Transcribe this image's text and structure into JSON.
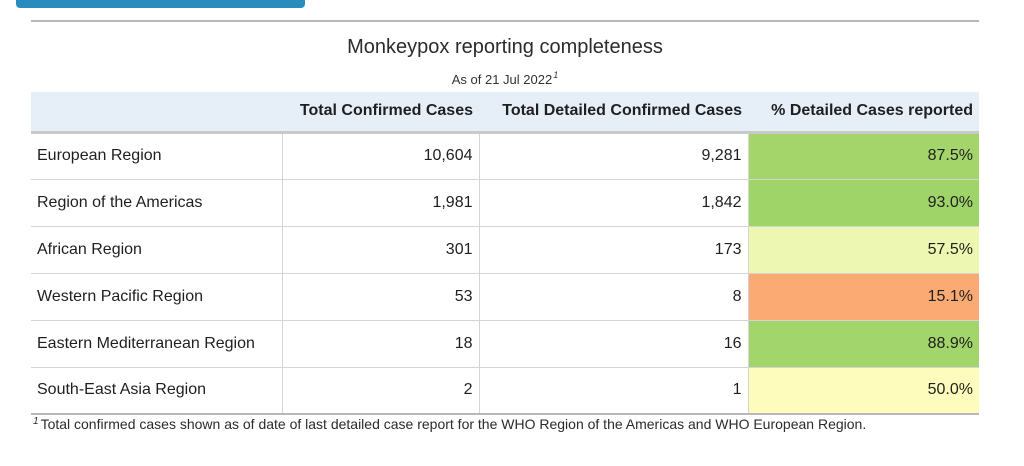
{
  "title": "Monkeypox reporting completeness",
  "subtitle": "As of 21 Jul 2022",
  "subtitle_marker": "1",
  "columns": [
    "",
    "Total Confirmed Cases",
    "Total Detailed Confirmed Cases",
    "% Detailed Cases reported"
  ],
  "rows": [
    {
      "region": "European Region",
      "total": "10,604",
      "detailed": "9,281",
      "pct": "87.5%",
      "color": "#a3d56b"
    },
    {
      "region": "Region of the Americas",
      "total": "1,981",
      "detailed": "1,842",
      "pct": "93.0%",
      "color": "#9fd468"
    },
    {
      "region": "African Region",
      "total": "301",
      "detailed": "173",
      "pct": "57.5%",
      "color": "#eef7b2"
    },
    {
      "region": "Western Pacific Region",
      "total": "53",
      "detailed": "8",
      "pct": "15.1%",
      "color": "#fcaa74"
    },
    {
      "region": "Eastern Mediterranean Region",
      "total": "18",
      "detailed": "16",
      "pct": "88.9%",
      "color": "#a2d56b"
    },
    {
      "region": "South-East Asia Region",
      "total": "2",
      "detailed": "1",
      "pct": "50.0%",
      "color": "#fefcbd"
    }
  ],
  "footnote_marker": "1",
  "footnote": "Total confirmed cases shown as of date of last detailed case report for the WHO Region of the Americas and WHO European Region.",
  "colors": {
    "accent_tab": "#2a8bbd",
    "header_bg": "#e6eef8"
  }
}
